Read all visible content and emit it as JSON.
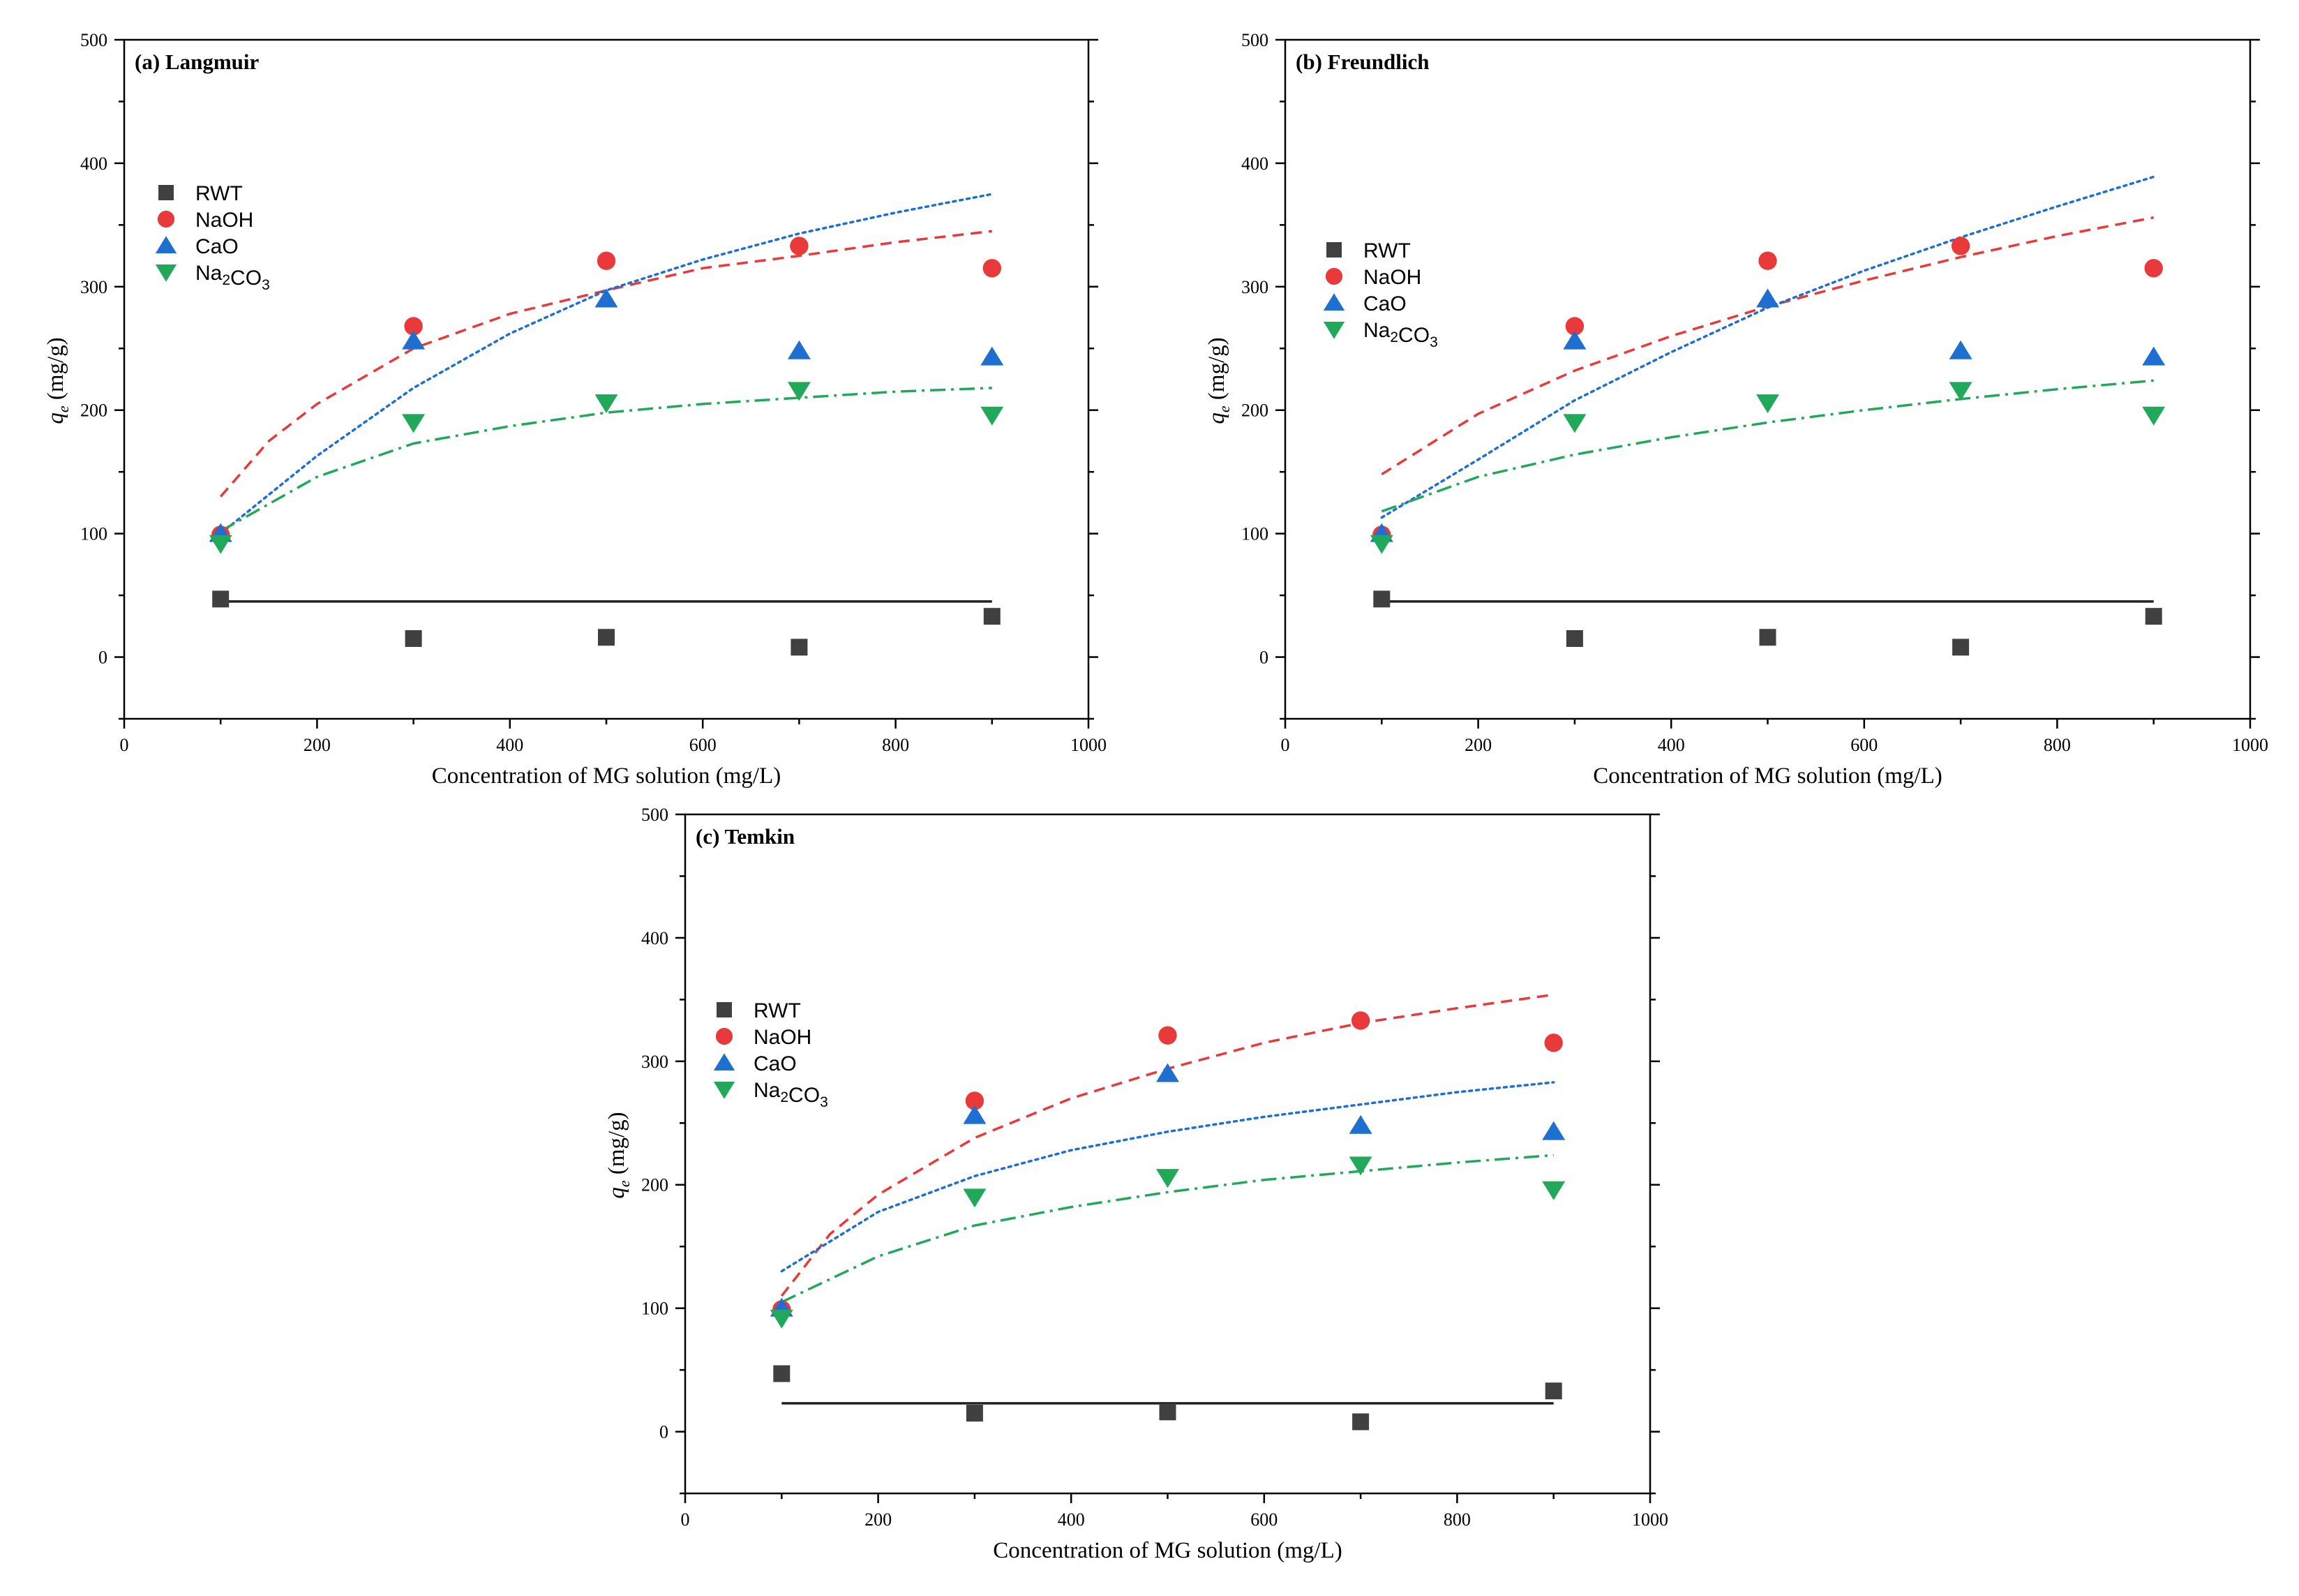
{
  "chart_data": [
    {
      "type": "scatter",
      "title": "(a) Langmuir",
      "xlabel": "Concentration of MG solution (mg/L)",
      "ylabel": "q_e (mg/g)",
      "ylabel_parts": {
        "symbol": "q",
        "sub": "e",
        "unit": " (mg/g)"
      },
      "xlim": [
        0,
        1000
      ],
      "ylim": [
        -50,
        500
      ],
      "xticks": [
        0,
        200,
        400,
        600,
        800,
        1000
      ],
      "yticks": [
        0,
        100,
        200,
        300,
        400,
        500
      ],
      "legend_position": "upper-left",
      "x": [
        100,
        300,
        500,
        700,
        900
      ],
      "series": [
        {
          "name": "RWT",
          "label": "RWT",
          "marker": "square",
          "color": "#404040",
          "values": [
            47,
            15,
            16,
            8,
            33
          ],
          "fit": {
            "x": [
              100,
              300,
              500,
              700,
              900
            ],
            "y": [
              45,
              45,
              45,
              45,
              45
            ],
            "style": "solid",
            "color": "#222222"
          }
        },
        {
          "name": "NaOH",
          "label": "NaOH",
          "marker": "circle",
          "color": "#e8393b",
          "values": [
            99,
            268,
            321,
            333,
            315
          ],
          "fit": {
            "x": [
              100,
              150,
              200,
              300,
              400,
              500,
              600,
              700,
              800,
              900
            ],
            "y": [
              130,
              175,
              205,
              250,
              278,
              297,
              315,
              325,
              336,
              345
            ],
            "style": "dashed",
            "color": "#e8393b"
          }
        },
        {
          "name": "CaO",
          "label": "CaO",
          "marker": "triangle-up",
          "color": "#1f6fd1",
          "values": [
            100,
            256,
            290,
            248,
            243
          ],
          "fit": {
            "x": [
              100,
              200,
              300,
              400,
              500,
              600,
              700,
              800,
              900
            ],
            "y": [
              100,
              163,
              218,
              262,
              297,
              322,
              343,
              360,
              375
            ],
            "style": "dotted",
            "color": "#1f6fd1"
          }
        },
        {
          "name": "Na2CO3",
          "label": "Na₂CO₃",
          "marker": "triangle-down",
          "color": "#22a85a",
          "values": [
            92,
            190,
            206,
            216,
            196
          ],
          "fit": {
            "x": [
              100,
              200,
              300,
              400,
              500,
              600,
              700,
              800,
              900
            ],
            "y": [
              102,
              146,
              173,
              187,
              198,
              205,
              210,
              215,
              218
            ],
            "style": "dashdot",
            "color": "#22a85a"
          }
        }
      ]
    },
    {
      "type": "scatter",
      "title": "(b) Freundlich",
      "xlabel": "Concentration of MG solution (mg/L)",
      "ylabel": "q_e (mg/g)",
      "ylabel_parts": {
        "symbol": "q",
        "sub": "e",
        "unit": " (mg/g)"
      },
      "xlim": [
        0,
        1000
      ],
      "ylim": [
        -50,
        500
      ],
      "xticks": [
        0,
        200,
        400,
        600,
        800,
        1000
      ],
      "yticks": [
        0,
        100,
        200,
        300,
        400,
        500
      ],
      "legend_position": "upper-left",
      "x": [
        100,
        300,
        500,
        700,
        900
      ],
      "series": [
        {
          "name": "RWT",
          "label": "RWT",
          "marker": "square",
          "color": "#404040",
          "values": [
            47,
            15,
            16,
            8,
            33
          ],
          "fit": {
            "x": [
              100,
              300,
              500,
              700,
              900
            ],
            "y": [
              45,
              45,
              45,
              45,
              45
            ],
            "style": "solid",
            "color": "#222222"
          }
        },
        {
          "name": "NaOH",
          "label": "NaOH",
          "marker": "circle",
          "color": "#e8393b",
          "values": [
            99,
            268,
            321,
            333,
            315
          ],
          "fit": {
            "x": [
              100,
              200,
              300,
              400,
              500,
              600,
              700,
              800,
              900
            ],
            "y": [
              148,
              197,
              232,
              260,
              284,
              305,
              324,
              341,
              356
            ],
            "style": "dashed",
            "color": "#e8393b"
          }
        },
        {
          "name": "CaO",
          "label": "CaO",
          "marker": "triangle-up",
          "color": "#1f6fd1",
          "values": [
            100,
            256,
            290,
            248,
            243
          ],
          "fit": {
            "x": [
              100,
              200,
              300,
              400,
              500,
              600,
              700,
              800,
              900
            ],
            "y": [
              113,
              160,
              208,
              247,
              283,
              313,
              340,
              365,
              389
            ],
            "style": "dotted",
            "color": "#1f6fd1"
          }
        },
        {
          "name": "Na2CO3",
          "label": "Na₂CO₃",
          "marker": "triangle-down",
          "color": "#22a85a",
          "values": [
            92,
            190,
            206,
            216,
            196
          ],
          "fit": {
            "x": [
              100,
              200,
              300,
              400,
              500,
              600,
              700,
              800,
              900
            ],
            "y": [
              118,
              146,
              164,
              178,
              190,
              200,
              209,
              217,
              224
            ],
            "style": "dashdot",
            "color": "#22a85a"
          }
        }
      ]
    },
    {
      "type": "scatter",
      "title": "(c) Temkin",
      "xlabel": "Concentration of MG solution (mg/L)",
      "ylabel": "q_e (mg/g)",
      "ylabel_parts": {
        "symbol": "q",
        "sub": "e",
        "unit": " (mg/g)"
      },
      "xlim": [
        0,
        1000
      ],
      "ylim": [
        -50,
        500
      ],
      "xticks": [
        0,
        200,
        400,
        600,
        800,
        1000
      ],
      "yticks": [
        0,
        100,
        200,
        300,
        400,
        500
      ],
      "legend_position": "upper-left",
      "x": [
        100,
        300,
        500,
        700,
        900
      ],
      "series": [
        {
          "name": "RWT",
          "label": "RWT",
          "marker": "square",
          "color": "#404040",
          "values": [
            47,
            15,
            16,
            8,
            33
          ],
          "fit": {
            "x": [
              100,
              300,
              500,
              700,
              900
            ],
            "y": [
              23,
              23,
              23,
              23,
              23
            ],
            "style": "solid",
            "color": "#222222"
          }
        },
        {
          "name": "NaOH",
          "label": "NaOH",
          "marker": "circle",
          "color": "#e8393b",
          "values": [
            99,
            268,
            321,
            333,
            315
          ],
          "fit": {
            "x": [
              100,
              150,
              200,
              300,
              400,
              500,
              600,
              700,
              800,
              900
            ],
            "y": [
              110,
              160,
              192,
              238,
              270,
              294,
              315,
              331,
              343,
              354
            ],
            "style": "dashed",
            "color": "#e8393b"
          }
        },
        {
          "name": "CaO",
          "label": "CaO",
          "marker": "triangle-up",
          "color": "#1f6fd1",
          "values": [
            100,
            256,
            290,
            248,
            243
          ],
          "fit": {
            "x": [
              100,
              200,
              300,
              400,
              500,
              600,
              700,
              800,
              900
            ],
            "y": [
              130,
              178,
              207,
              228,
              243,
              255,
              265,
              275,
              283
            ],
            "style": "dotted",
            "color": "#1f6fd1"
          }
        },
        {
          "name": "Na2CO3",
          "label": "Na₂CO₃",
          "marker": "triangle-down",
          "color": "#22a85a",
          "values": [
            92,
            190,
            206,
            216,
            196
          ],
          "fit": {
            "x": [
              100,
              200,
              300,
              400,
              500,
              600,
              700,
              800,
              900
            ],
            "y": [
              105,
              142,
              167,
              182,
              194,
              204,
              211,
              218,
              224
            ],
            "style": "dashdot",
            "color": "#22a85a"
          }
        }
      ]
    }
  ]
}
